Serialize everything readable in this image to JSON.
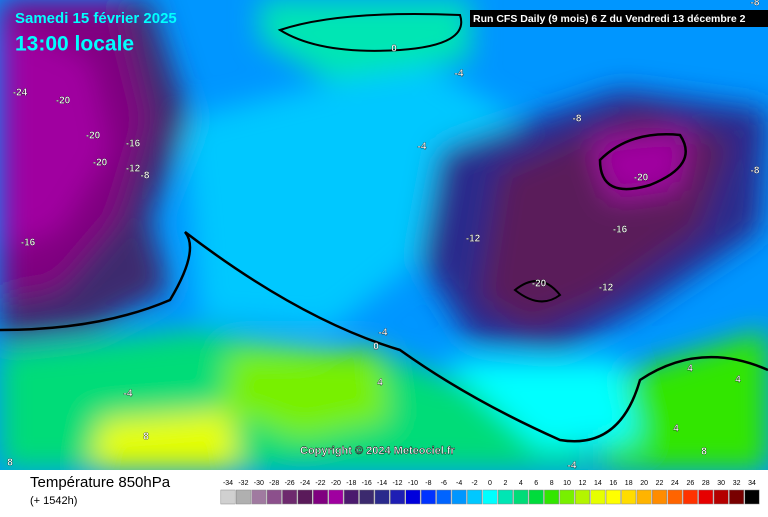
{
  "header": {
    "date": "Samedi 15 février 2025",
    "time": "13:00 locale",
    "run": "Run CFS Daily (9 mois) 6 Z du Vendredi 13 décembre 2"
  },
  "copyright": "Copyright © 2024 Meteociel.fr",
  "contour_labels": [
    -24,
    -20,
    -20,
    -20,
    -16,
    -12,
    -8,
    -16,
    0,
    -4,
    -8,
    -4,
    -8,
    -8,
    -20,
    -12,
    -16,
    -20,
    -12,
    -4,
    0,
    4,
    4,
    -4,
    8,
    8,
    -4,
    4,
    8,
    4
  ],
  "footer": {
    "title": "Température 850hPa",
    "subtitle": "(+ 1542h)"
  },
  "legend": {
    "labels": [
      -34,
      -32,
      -30,
      -28,
      -26,
      -24,
      -22,
      -20,
      -18,
      -16,
      -14,
      -12,
      -10,
      -8,
      -6,
      -4,
      -2,
      0,
      2,
      4,
      6,
      8,
      10,
      12,
      14,
      16,
      18,
      20,
      22,
      24,
      26,
      28,
      30,
      32,
      34
    ],
    "colors": [
      "#d0d0d0",
      "#b0b0b0",
      "#a07aa0",
      "#8c508c",
      "#6e2a6e",
      "#5a1a5a",
      "#800080",
      "#a000a0",
      "#4b1a6e",
      "#3c2a6e",
      "#2a2a8c",
      "#1e1eb4",
      "#0000dc",
      "#0032ff",
      "#0064ff",
      "#0096ff",
      "#00c8ff",
      "#00ffff",
      "#00e6b4",
      "#00dc78",
      "#00dc3c",
      "#32e600",
      "#78f000",
      "#b4f500",
      "#e6ff00",
      "#ffff00",
      "#ffdc00",
      "#ffb400",
      "#ff8c00",
      "#ff6400",
      "#ff3200",
      "#e60000",
      "#b40000",
      "#780000",
      "#000000"
    ]
  }
}
